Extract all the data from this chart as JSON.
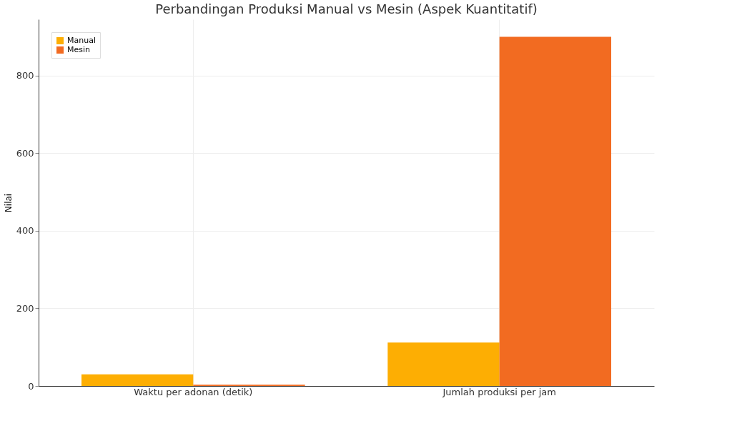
{
  "chart_data": {
    "type": "bar",
    "title": "Perbandingan Produksi Manual vs Mesin (Aspek Kuantitatif)",
    "ylabel": "Nilai",
    "categories": [
      "Waktu per adonan (detik)",
      "Jumlah produksi per jam"
    ],
    "series": [
      {
        "name": "Manual",
        "color": "#fdae03",
        "values": [
          30,
          112
        ]
      },
      {
        "name": "Mesin",
        "color": "#f26b21",
        "values": [
          3,
          900
        ]
      }
    ],
    "ylim": [
      0,
      945
    ],
    "yticks": [
      0,
      200,
      400,
      600,
      800
    ],
    "grid": true,
    "legend": "top left"
  }
}
